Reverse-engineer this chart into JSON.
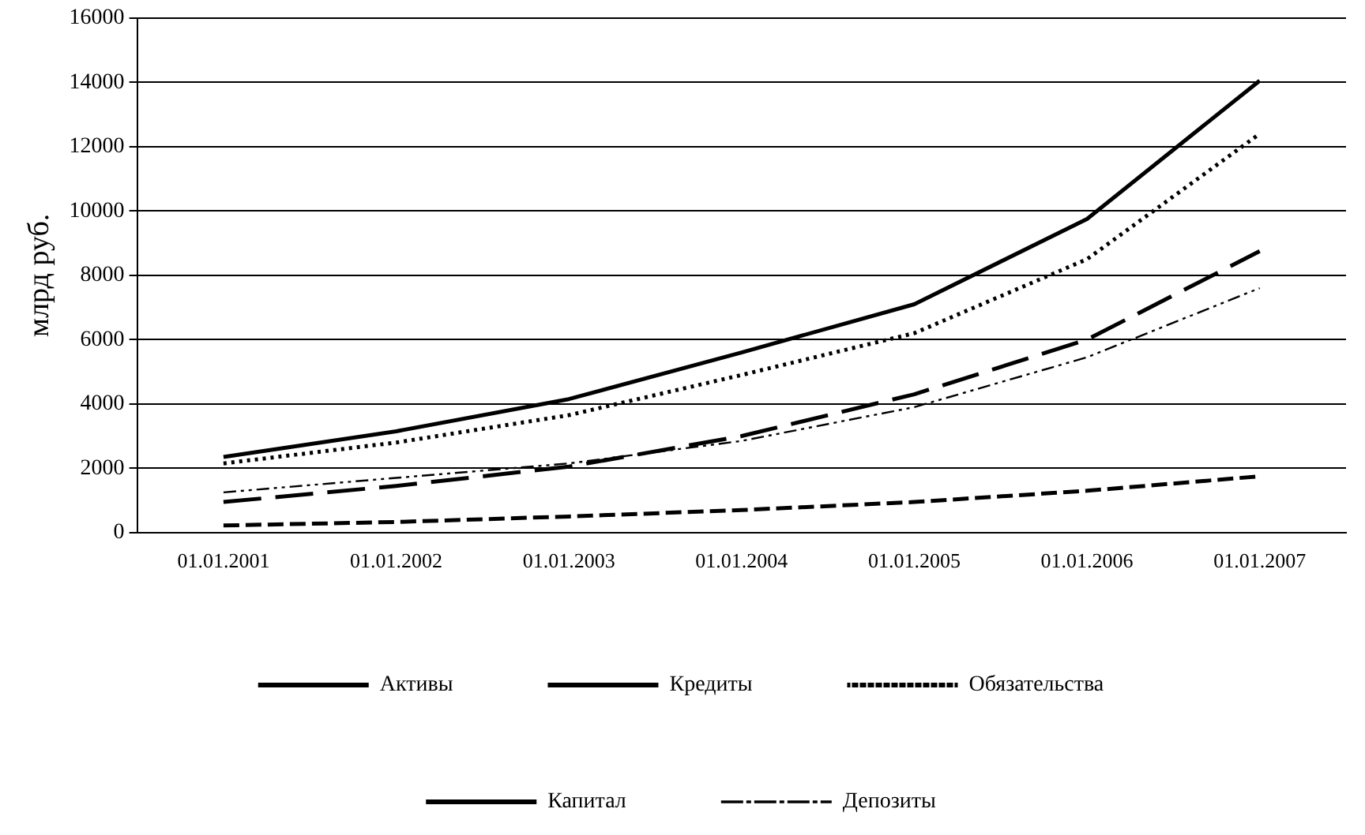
{
  "chart_data": {
    "type": "line",
    "ylabel": "млрд руб.",
    "categories": [
      "01.01.2001",
      "01.01.2002",
      "01.01.2003",
      "01.01.2004",
      "01.01.2005",
      "01.01.2006",
      "01.01.2007"
    ],
    "series": [
      {
        "name": "Активы",
        "color": "#000000",
        "line_style": "solid",
        "values": [
          2350,
          3150,
          4150,
          5600,
          7100,
          9750,
          14050
        ]
      },
      {
        "name": "Кредиты",
        "color": "#000000",
        "line_style": "longdash",
        "values": [
          950,
          1450,
          2050,
          3000,
          4300,
          6000,
          8750
        ]
      },
      {
        "name": "Обязательства",
        "color": "#000000",
        "line_style": "dotted",
        "values": [
          2150,
          2800,
          3650,
          4900,
          6200,
          8500,
          12400
        ]
      },
      {
        "name": "Капитал",
        "color": "#000000",
        "line_style": "dashed",
        "values": [
          220,
          330,
          500,
          700,
          950,
          1300,
          1750
        ]
      },
      {
        "name": "Депозиты",
        "color": "#000000",
        "line_style": "dashdot",
        "values": [
          1250,
          1700,
          2150,
          2850,
          3900,
          5450,
          7600
        ]
      }
    ],
    "ylim": [
      0,
      16000
    ],
    "yticks": [
      0,
      2000,
      4000,
      6000,
      8000,
      10000,
      12000,
      14000,
      16000
    ],
    "grid": "y",
    "legend": "bottom",
    "marker": "none"
  }
}
